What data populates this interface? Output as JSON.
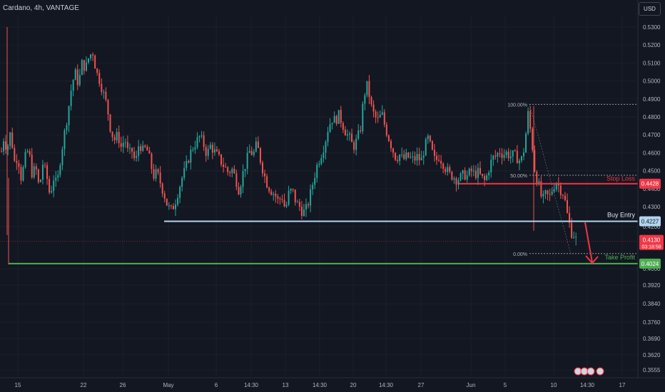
{
  "header": {
    "title": "Cardano, 4h, VANTAGE",
    "currency_button": "USD"
  },
  "colors": {
    "background": "#131722",
    "up": "#26a69a",
    "down": "#ef5350",
    "stop_loss": "#f23645",
    "buy_entry": "#b2d4f0",
    "take_profit": "#4caf50"
  },
  "chart_data": {
    "type": "candlestick",
    "title": "Cardano, 4h, VANTAGE",
    "ylim": [
      0.355,
      0.535
    ],
    "y_ticks": [
      "0.5300",
      "0.5200",
      "0.5100",
      "0.5000",
      "0.4900",
      "0.4800",
      "0.4700",
      "0.4600",
      "0.4500",
      "0.4400",
      "0.4300",
      "0.4200",
      "0.4000",
      "0.3920",
      "0.3840",
      "0.3760",
      "0.3690",
      "0.3620",
      "0.3555"
    ],
    "x_ticks": [
      "15",
      "22",
      "26",
      "May",
      "6",
      "14:30",
      "13",
      "14:30",
      "20",
      "14:30",
      "27",
      "Jun",
      "5",
      "10",
      "14:30",
      "17"
    ],
    "price_path": [
      [
        0,
        0.456
      ],
      [
        5,
        0.468
      ],
      [
        10,
        0.462
      ],
      [
        15,
        0.472
      ],
      [
        20,
        0.455
      ],
      [
        25,
        0.458
      ],
      [
        30,
        0.445
      ],
      [
        35,
        0.457
      ],
      [
        40,
        0.462
      ],
      [
        45,
        0.448
      ],
      [
        50,
        0.452
      ],
      [
        55,
        0.44
      ],
      [
        60,
        0.454
      ],
      [
        65,
        0.448
      ],
      [
        70,
        0.436
      ],
      [
        75,
        0.446
      ],
      [
        80,
        0.442
      ],
      [
        85,
        0.458
      ],
      [
        90,
        0.47
      ],
      [
        95,
        0.482
      ],
      [
        100,
        0.496
      ],
      [
        105,
        0.505
      ],
      [
        110,
        0.498
      ],
      [
        115,
        0.51
      ],
      [
        120,
        0.507
      ],
      [
        125,
        0.514
      ],
      [
        130,
        0.516
      ],
      [
        135,
        0.505
      ],
      [
        140,
        0.5
      ],
      [
        145,
        0.493
      ],
      [
        150,
        0.486
      ],
      [
        155,
        0.473
      ],
      [
        160,
        0.467
      ],
      [
        165,
        0.47
      ],
      [
        170,
        0.463
      ],
      [
        175,
        0.468
      ],
      [
        180,
        0.459
      ],
      [
        185,
        0.461
      ],
      [
        190,
        0.454
      ],
      [
        195,
        0.466
      ],
      [
        200,
        0.461
      ],
      [
        205,
        0.463
      ],
      [
        210,
        0.456
      ],
      [
        215,
        0.447
      ],
      [
        220,
        0.449
      ],
      [
        225,
        0.443
      ],
      [
        230,
        0.437
      ],
      [
        235,
        0.43
      ],
      [
        240,
        0.428
      ],
      [
        245,
        0.432
      ],
      [
        250,
        0.439
      ],
      [
        255,
        0.446
      ],
      [
        260,
        0.451
      ],
      [
        265,
        0.458
      ],
      [
        270,
        0.463
      ],
      [
        275,
        0.466
      ],
      [
        280,
        0.469
      ],
      [
        285,
        0.465
      ],
      [
        290,
        0.459
      ],
      [
        295,
        0.464
      ],
      [
        300,
        0.461
      ],
      [
        305,
        0.458
      ],
      [
        310,
        0.455
      ],
      [
        315,
        0.452
      ],
      [
        320,
        0.449
      ],
      [
        325,
        0.451
      ],
      [
        330,
        0.446
      ],
      [
        335,
        0.439
      ],
      [
        340,
        0.448
      ],
      [
        345,
        0.455
      ],
      [
        350,
        0.461
      ],
      [
        355,
        0.459
      ],
      [
        360,
        0.465
      ],
      [
        365,
        0.456
      ],
      [
        370,
        0.448
      ],
      [
        375,
        0.442
      ],
      [
        380,
        0.439
      ],
      [
        385,
        0.437
      ],
      [
        390,
        0.433
      ],
      [
        395,
        0.436
      ],
      [
        400,
        0.428
      ],
      [
        405,
        0.438
      ],
      [
        410,
        0.439
      ],
      [
        415,
        0.432
      ],
      [
        420,
        0.43
      ],
      [
        425,
        0.427
      ],
      [
        430,
        0.429
      ],
      [
        435,
        0.437
      ],
      [
        440,
        0.446
      ],
      [
        445,
        0.454
      ],
      [
        450,
        0.459
      ],
      [
        455,
        0.465
      ],
      [
        460,
        0.474
      ],
      [
        465,
        0.479
      ],
      [
        470,
        0.478
      ],
      [
        475,
        0.481
      ],
      [
        480,
        0.476
      ],
      [
        485,
        0.471
      ],
      [
        490,
        0.468
      ],
      [
        495,
        0.463
      ],
      [
        500,
        0.467
      ],
      [
        505,
        0.473
      ],
      [
        510,
        0.492
      ],
      [
        515,
        0.498
      ],
      [
        520,
        0.486
      ],
      [
        525,
        0.48
      ],
      [
        530,
        0.478
      ],
      [
        535,
        0.482
      ],
      [
        540,
        0.474
      ],
      [
        545,
        0.468
      ],
      [
        550,
        0.462
      ],
      [
        555,
        0.457
      ],
      [
        560,
        0.459
      ],
      [
        565,
        0.456
      ],
      [
        570,
        0.458
      ],
      [
        575,
        0.457
      ],
      [
        580,
        0.456
      ],
      [
        585,
        0.458
      ],
      [
        590,
        0.455
      ],
      [
        595,
        0.463
      ],
      [
        600,
        0.468
      ],
      [
        605,
        0.461
      ],
      [
        610,
        0.455
      ],
      [
        615,
        0.458
      ],
      [
        620,
        0.455
      ],
      [
        625,
        0.451
      ],
      [
        630,
        0.448
      ],
      [
        635,
        0.447
      ],
      [
        640,
        0.445
      ],
      [
        645,
        0.446
      ],
      [
        650,
        0.448
      ],
      [
        655,
        0.447
      ],
      [
        660,
        0.45
      ],
      [
        665,
        0.448
      ],
      [
        670,
        0.449
      ],
      [
        675,
        0.446
      ],
      [
        680,
        0.444
      ],
      [
        685,
        0.451
      ],
      [
        690,
        0.457
      ],
      [
        695,
        0.458
      ],
      [
        700,
        0.461
      ],
      [
        705,
        0.459
      ],
      [
        710,
        0.46
      ],
      [
        715,
        0.458
      ],
      [
        720,
        0.459
      ],
      [
        725,
        0.457
      ],
      [
        730,
        0.455
      ],
      [
        735,
        0.463
      ],
      [
        740,
        0.482
      ],
      [
        745,
        0.468
      ],
      [
        750,
        0.448
      ],
      [
        755,
        0.442
      ],
      [
        760,
        0.433
      ],
      [
        765,
        0.437
      ],
      [
        770,
        0.435
      ],
      [
        775,
        0.441
      ],
      [
        780,
        0.444
      ],
      [
        785,
        0.44
      ],
      [
        790,
        0.437
      ],
      [
        795,
        0.426
      ],
      [
        800,
        0.418
      ],
      [
        805,
        0.416
      ],
      [
        808,
        0.413
      ]
    ],
    "fib_levels": [
      {
        "label": "100.00%",
        "price": 0.487
      },
      {
        "label": "50.00%",
        "price": 0.4475
      },
      {
        "label": "0.00%",
        "price": 0.4072
      }
    ],
    "horizontal_lines": [
      {
        "name": "Stop Loss",
        "price": 0.4428,
        "label": "0.4428",
        "color": "#f23645"
      },
      {
        "name": "Buy Entry",
        "price": 0.4227,
        "label": "0.4227",
        "color": "#b2d4f0"
      },
      {
        "name": "Take Profit",
        "price": 0.4024,
        "label": "0.4024",
        "color": "#4caf50"
      }
    ],
    "current_price": {
      "value": "0.4130",
      "countdown": "03:18:58"
    }
  }
}
